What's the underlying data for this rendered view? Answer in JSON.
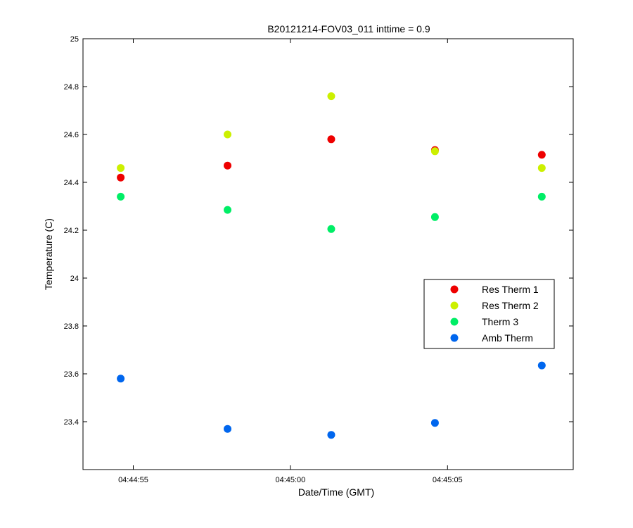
{
  "chart_data": {
    "type": "scatter",
    "title": "B20121214-FOV03_011 inttime = 0.9",
    "xlabel": "Date/Time (GMT)",
    "ylabel": "Temperature (C)",
    "x": [
      "04:44:54.6",
      "04:44:58.0",
      "04:45:01.3",
      "04:45:04.6",
      "04:45:08.0"
    ],
    "xlim": [
      "04:44:53.4",
      "04:45:09.0"
    ],
    "ylim": [
      23.2,
      25
    ],
    "xticks": [
      "04:44:55",
      "04:45:00",
      "04:45:05"
    ],
    "yticks": [
      "23.4",
      "23.6",
      "23.8",
      "24",
      "24.2",
      "24.4",
      "24.6",
      "24.8",
      "25"
    ],
    "grid": false,
    "legend_position": "right",
    "series": [
      {
        "name": "Res Therm 1",
        "color": "#ee0000",
        "values": [
          24.42,
          24.47,
          24.58,
          24.535,
          24.515
        ]
      },
      {
        "name": "Res Therm 2",
        "color": "#ccf000",
        "values": [
          24.46,
          24.6,
          24.76,
          24.53,
          24.46
        ]
      },
      {
        "name": "Therm 3",
        "color": "#00ee66",
        "values": [
          24.34,
          24.285,
          24.205,
          24.255,
          24.34
        ]
      },
      {
        "name": "Amb Therm",
        "color": "#0066ee",
        "values": [
          23.58,
          23.37,
          23.345,
          23.395,
          23.635
        ]
      }
    ]
  }
}
